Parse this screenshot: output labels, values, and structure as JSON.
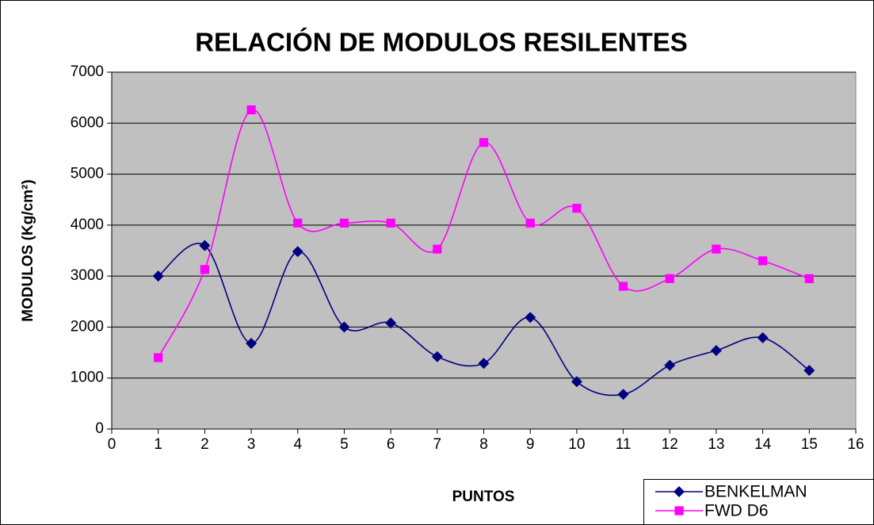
{
  "chart_data": {
    "type": "line",
    "title": "RELACIÓN DE MODULOS RESILENTES",
    "x_label": "PUNTOS",
    "y_label": "MODULOS (Kg/cm²)",
    "x": [
      1,
      2,
      3,
      4,
      5,
      6,
      7,
      8,
      9,
      10,
      11,
      12,
      13,
      14,
      15
    ],
    "series": [
      {
        "name": "BENKELMAN",
        "color": "#000080",
        "marker": "diamond",
        "values": [
          3000,
          3600,
          1680,
          3480,
          2000,
          2080,
          1420,
          1290,
          2190,
          930,
          680,
          1250,
          1540,
          1790,
          1150
        ]
      },
      {
        "name": "FWD D6",
        "color": "#ff00ff",
        "marker": "square",
        "values": [
          1400,
          3130,
          6260,
          4040,
          4040,
          4040,
          3530,
          5620,
          4040,
          4330,
          2800,
          2950,
          3530,
          3300,
          2950
        ]
      }
    ],
    "xlim": [
      0,
      16
    ],
    "xticks": [
      0,
      1,
      2,
      3,
      4,
      5,
      6,
      7,
      8,
      9,
      10,
      11,
      12,
      13,
      14,
      15,
      16
    ],
    "ylim": [
      0,
      7000
    ],
    "yticks": [
      0,
      1000,
      2000,
      3000,
      4000,
      5000,
      6000,
      7000
    ],
    "grid": true,
    "smooth": true,
    "plot_background": "#c0c0c0",
    "legend": "bottom-right"
  }
}
